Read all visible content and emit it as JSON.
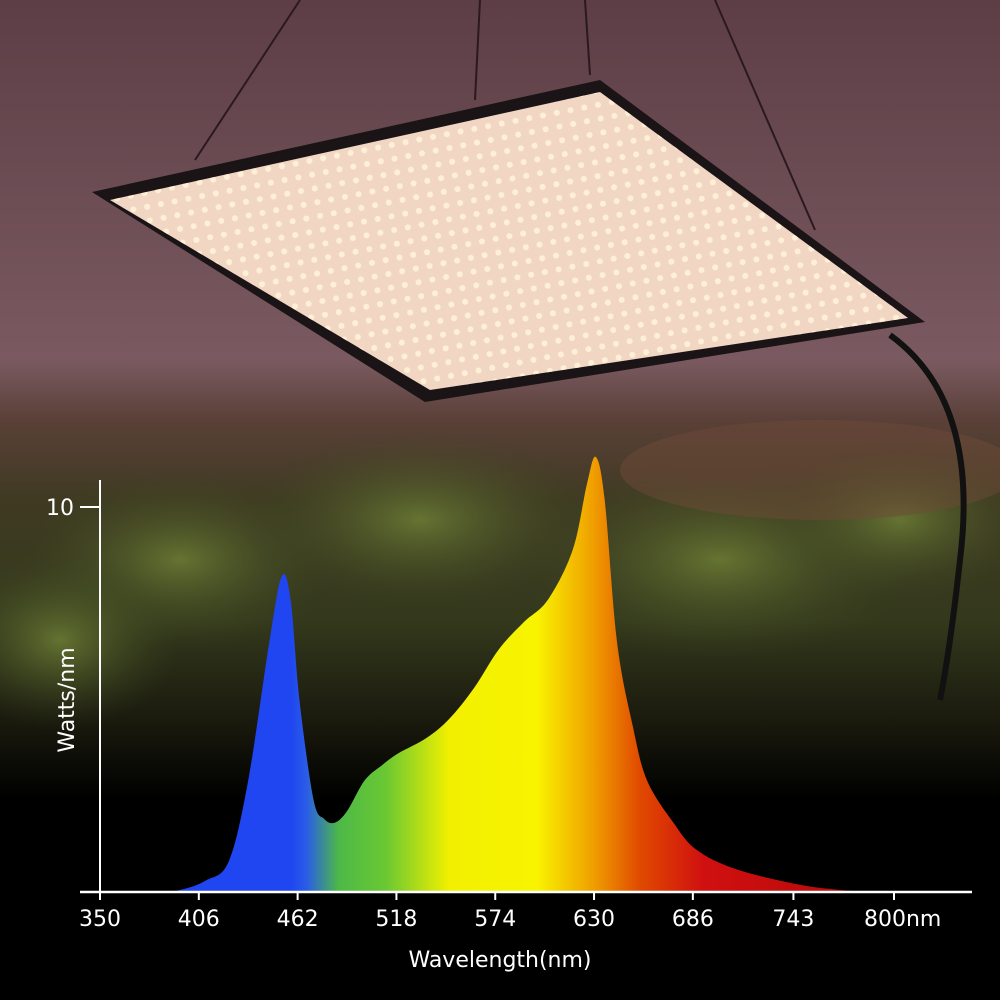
{
  "chart_data": {
    "type": "area",
    "title": "",
    "xlabel": "Wavelength(nm)",
    "ylabel": "Watts/nm",
    "x_ticks": [
      "350",
      "406",
      "462",
      "518",
      "574",
      "630",
      "686",
      "743",
      "800nm"
    ],
    "x_tick_values": [
      350,
      406,
      462,
      518,
      574,
      630,
      686,
      743,
      800
    ],
    "y_ticks": [
      "10"
    ],
    "y_tick_values": [
      10
    ],
    "xlim": [
      339,
      838
    ],
    "ylim": [
      0,
      12
    ],
    "grid": false,
    "fill": "spectral gradient (blue to red by wavelength)",
    "colors": {
      "blue": "#1f46f0",
      "green": "#62c832",
      "yellow": "#f6f000",
      "orange": "#f07a00",
      "red": "#d01010",
      "axis": "#ffffff"
    },
    "series": [
      {
        "x": [
          380,
          395,
          410,
          423,
          434,
          446,
          453,
          458,
          463,
          471,
          477,
          483,
          490,
          500,
          510,
          519,
          535,
          548,
          562,
          576,
          590,
          604,
          618,
          626,
          631,
          636,
          643,
          652,
          660,
          675,
          688,
          710,
          745,
          770,
          790
        ],
        "y": [
          0,
          0.05,
          0.3,
          0.8,
          2.9,
          6.5,
          8.2,
          7.6,
          5.0,
          2.4,
          1.9,
          1.8,
          2.1,
          2.9,
          3.3,
          3.6,
          4.0,
          4.5,
          5.3,
          6.3,
          7.0,
          7.6,
          8.9,
          10.6,
          11.3,
          10.2,
          6.5,
          4.3,
          2.9,
          1.8,
          1.1,
          0.6,
          0.2,
          0.05,
          0
        ]
      }
    ]
  },
  "background": {
    "colors": {
      "sky": "#6b4850",
      "panel": "#f3d9c6",
      "foliage": "#4f5a2a",
      "bottom": "#000000"
    }
  }
}
